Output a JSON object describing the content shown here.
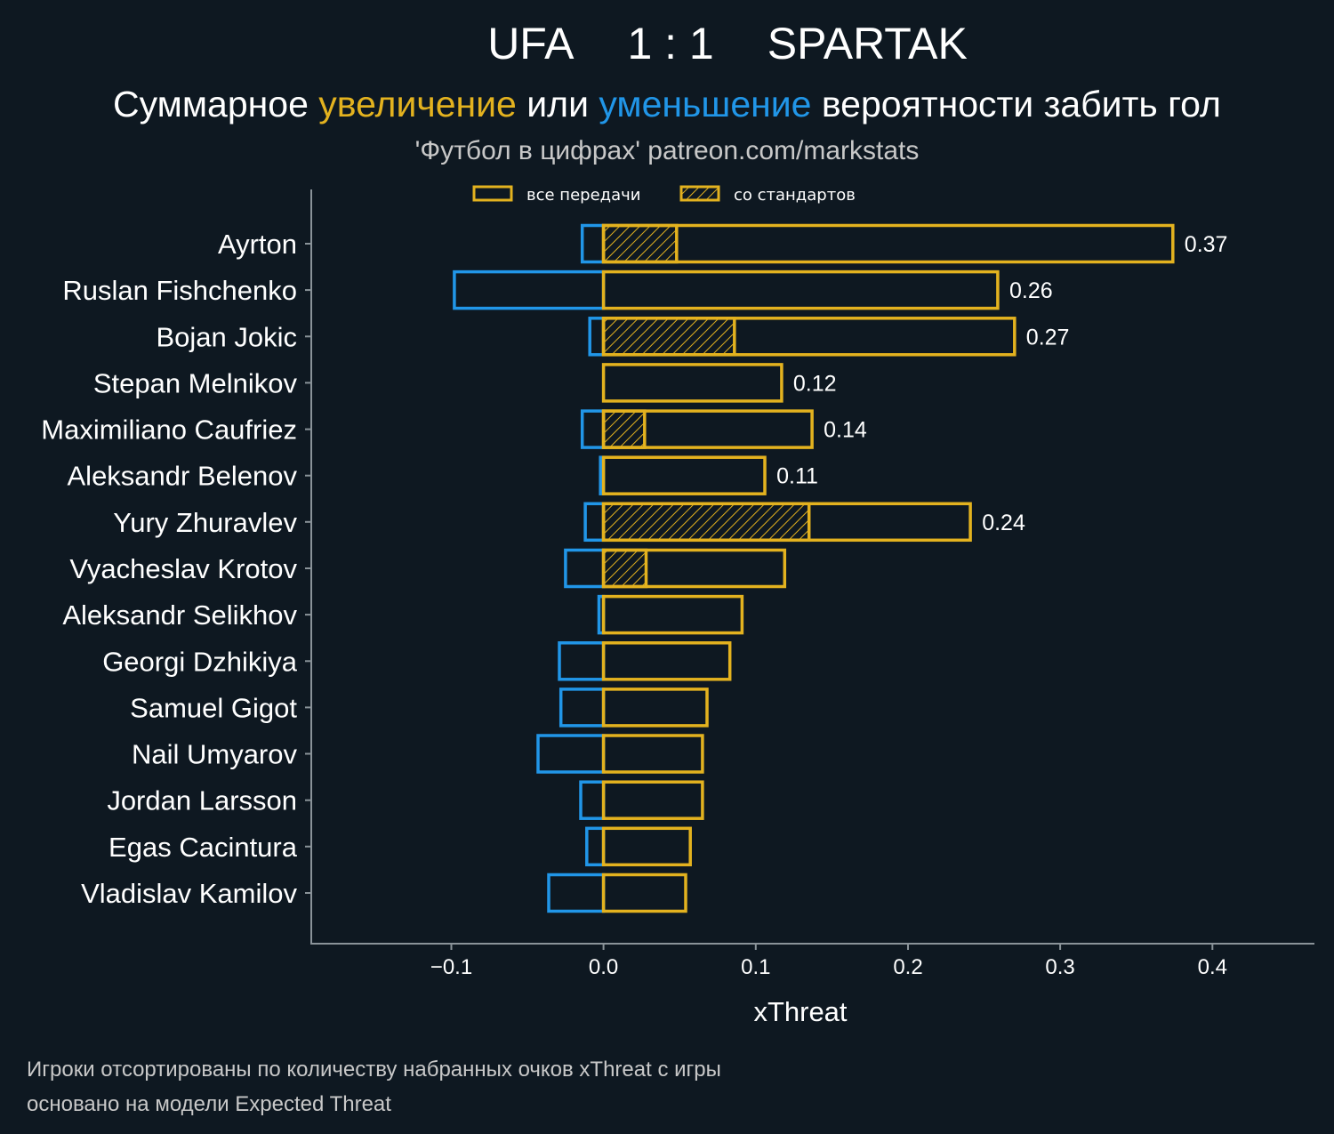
{
  "title": {
    "home": "UFA",
    "score": "1 : 1",
    "away": "SPARTAK"
  },
  "subtitle": {
    "part1": "Суммарное ",
    "positive_word": "увеличение",
    "part2": " или ",
    "negative_word": "уменьшение",
    "part3": " вероятности забить гол"
  },
  "source": "'Футбол в цифрах' patreon.com/markstats",
  "legend": {
    "all_passes": "все передачи",
    "set_pieces": "со стандартов"
  },
  "footer": {
    "line1": "Игроки отсортированы по количеству набранных очков xThreat с игры",
    "line2": "основано на модели Expected Threat"
  },
  "colors": {
    "background": "#0e1821",
    "positive": "#e3b21f",
    "negative": "#2196e8",
    "text": "#ffffff",
    "muted_text": "#c8c8c8",
    "axis": "#8a9399"
  },
  "chart_data": {
    "type": "bar",
    "orientation": "horizontal",
    "xlabel": "xThreat",
    "xlim": [
      -0.192,
      0.467
    ],
    "xticks": [
      -0.1,
      0.0,
      0.1,
      0.2,
      0.3,
      0.4
    ],
    "xtick_labels": [
      "−0.1",
      "0.0",
      "0.1",
      "0.2",
      "0.3",
      "0.4"
    ],
    "categories": [
      "Ayrton",
      "Ruslan Fishchenko",
      "Bojan Jokic",
      "Stepan Melnikov",
      "Maximiliano Caufriez",
      "Aleksandr Belenov",
      "Yury Zhuravlev",
      "Vyacheslav Krotov",
      "Aleksandr Selikhov",
      "Georgi Dzhikiya",
      "Samuel Gigot",
      "Nail Umyarov",
      "Jordan Larsson",
      "Egas Cacintura",
      "Vladislav Kamilov"
    ],
    "series": [
      {
        "name": "positive (все передачи)",
        "values": [
          0.374,
          0.259,
          0.27,
          0.117,
          0.137,
          0.106,
          0.241,
          0.119,
          0.091,
          0.083,
          0.068,
          0.065,
          0.065,
          0.057,
          0.054
        ]
      },
      {
        "name": "set pieces (со стандартов)",
        "values": [
          0.048,
          0.0,
          0.086,
          0.0,
          0.027,
          0.0,
          0.135,
          0.028,
          0.0,
          0.0,
          0.0,
          0.0,
          0.0,
          0.0,
          0.0
        ]
      },
      {
        "name": "negative",
        "values": [
          -0.014,
          -0.098,
          -0.009,
          0.0,
          -0.014,
          -0.002,
          -0.012,
          -0.025,
          -0.003,
          -0.029,
          -0.028,
          -0.043,
          -0.015,
          -0.011,
          -0.036
        ]
      }
    ],
    "data_labels": [
      "0.37",
      "0.26",
      "0.27",
      "0.12",
      "0.14",
      "0.11",
      "0.24",
      "",
      "",
      "",
      "",
      "",
      "",
      "",
      ""
    ]
  }
}
